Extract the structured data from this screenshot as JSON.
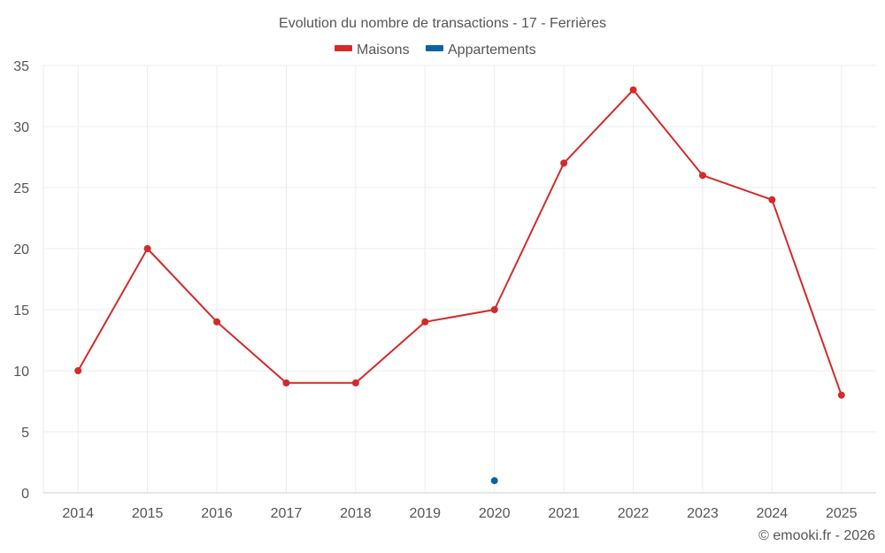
{
  "chart_data": {
    "type": "line",
    "title": "Evolution du nombre de transactions - 17 - Ferrières",
    "categories": [
      "2014",
      "2015",
      "2016",
      "2017",
      "2018",
      "2019",
      "2020",
      "2021",
      "2022",
      "2023",
      "2024",
      "2025"
    ],
    "series": [
      {
        "name": "Maisons",
        "color": "#d32a2a",
        "values": [
          10,
          20,
          14,
          9,
          9,
          14,
          15,
          27,
          33,
          26,
          24,
          8
        ]
      },
      {
        "name": "Appartements",
        "color": "#0b64a0",
        "values": [
          null,
          null,
          null,
          null,
          null,
          null,
          1,
          null,
          null,
          null,
          null,
          null
        ]
      }
    ],
    "ylim": [
      0,
      35
    ],
    "yticks": [
      0,
      5,
      10,
      15,
      20,
      25,
      30,
      35
    ],
    "xlabel": "",
    "ylabel": "",
    "grid": true,
    "legend": "top-center"
  },
  "credit": "© emooki.fr - 2026"
}
